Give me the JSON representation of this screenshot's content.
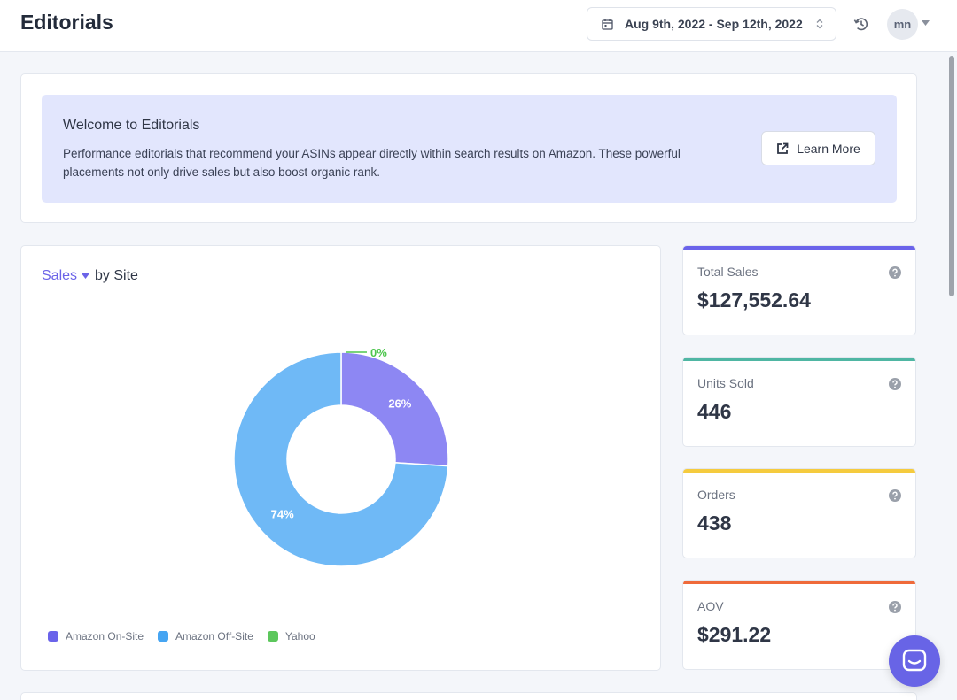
{
  "header": {
    "title": "Editorials",
    "date_range": "Aug 9th, 2022 - Sep 12th, 2022",
    "avatar_initials": "mn"
  },
  "welcome": {
    "title": "Welcome to Editorials",
    "body": "Performance editorials that recommend your ASINs appear directly within search results on Amazon. These powerful placements not only drive sales but also boost organic rank.",
    "button_label": "Learn More"
  },
  "chart": {
    "metric_label": "Sales",
    "suffix": "by Site"
  },
  "chart_data": {
    "type": "pie",
    "variant": "donut",
    "categories": [
      "Amazon On-Site",
      "Amazon Off-Site",
      "Yahoo"
    ],
    "values": [
      26,
      74,
      0
    ],
    "labels": [
      "26%",
      "74%",
      "0%"
    ],
    "colors": [
      "#8d87f3",
      "#6fb9f6",
      "#4fc64f"
    ],
    "legend_colors": [
      "#6a63ea",
      "#46a5f2",
      "#5cc75c"
    ],
    "legend": "bottom-left"
  },
  "stats": [
    {
      "label": "Total Sales",
      "value": "$127,552.64",
      "color": "#6a63ea"
    },
    {
      "label": "Units Sold",
      "value": "446",
      "color": "#4fb6a3"
    },
    {
      "label": "Orders",
      "value": "438",
      "color": "#f5cb3e"
    },
    {
      "label": "AOV",
      "value": "$291.22",
      "color": "#ef6a3a"
    }
  ]
}
